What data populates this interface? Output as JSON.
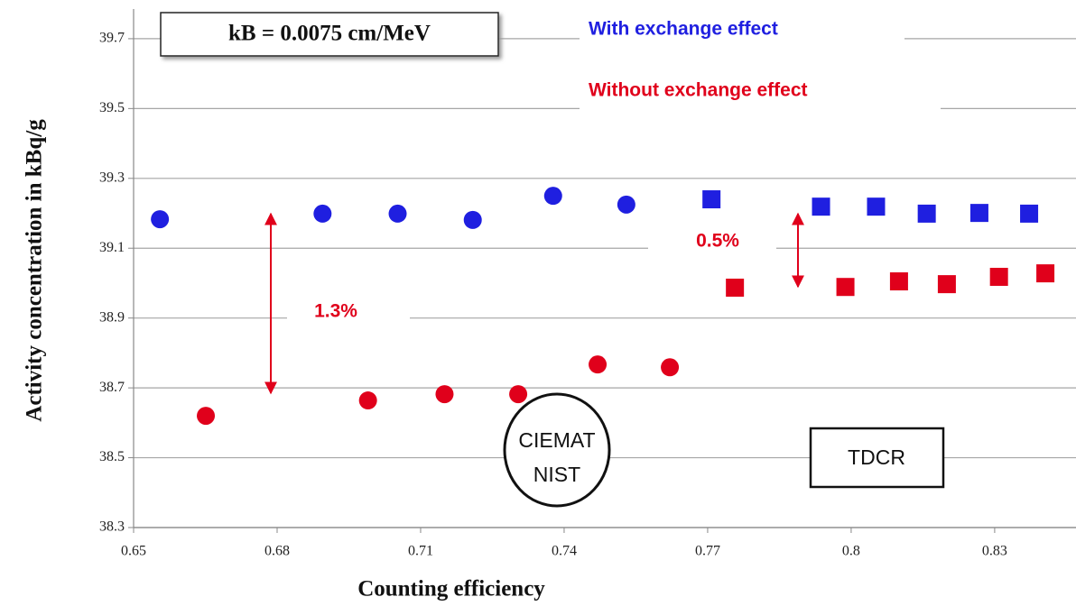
{
  "chart_data": {
    "type": "scatter",
    "x_label": "Counting efficiency",
    "y_label": "Activity concentration in kBq/g",
    "xlim": [
      0.65,
      0.847
    ],
    "ylim": [
      38.3,
      39.785
    ],
    "xticks": [
      0.65,
      0.68,
      0.71,
      0.74,
      0.77,
      0.8,
      0.83
    ],
    "yticks": [
      38.3,
      38.5,
      38.7,
      38.9,
      39.1,
      39.3,
      39.5,
      39.7
    ],
    "grid": true,
    "legend": [
      {
        "label": "With exchange effect",
        "color": "#1f1fe0"
      },
      {
        "label": "Without exchange effect",
        "color": "#e0001b"
      }
    ],
    "series": [
      {
        "marker": "circle",
        "color": "#1f1fe0",
        "x": [
          0.6555,
          0.6895,
          0.7052,
          0.7209,
          0.7377,
          0.753
        ],
        "values": [
          39.183,
          39.199,
          39.199,
          39.181,
          39.25,
          39.225
        ]
      },
      {
        "marker": "circle",
        "color": "#e0001b",
        "x": [
          0.6651,
          0.699,
          0.715,
          0.7304,
          0.747,
          0.7621
        ],
        "values": [
          38.62,
          38.664,
          38.682,
          38.682,
          38.767,
          38.759
        ]
      },
      {
        "marker": "square",
        "color": "#1f1fe0",
        "x": [
          0.7708,
          0.7937,
          0.8052,
          0.8158,
          0.8268,
          0.8372
        ],
        "values": [
          39.24,
          39.219,
          39.219,
          39.199,
          39.201,
          39.199
        ]
      },
      {
        "marker": "square",
        "color": "#e0001b",
        "x": [
          0.7757,
          0.7988,
          0.81,
          0.82,
          0.8309,
          0.8406
        ],
        "values": [
          38.987,
          38.989,
          39.005,
          38.997,
          39.018,
          39.028
        ]
      }
    ],
    "annotations": {
      "kb": "kB = 0.0075 cm/MeV",
      "gap_left": "1.3%",
      "gap_right": "0.5%",
      "method_left": [
        "CIEMAT",
        "NIST"
      ],
      "method_right": "TDCR"
    }
  }
}
